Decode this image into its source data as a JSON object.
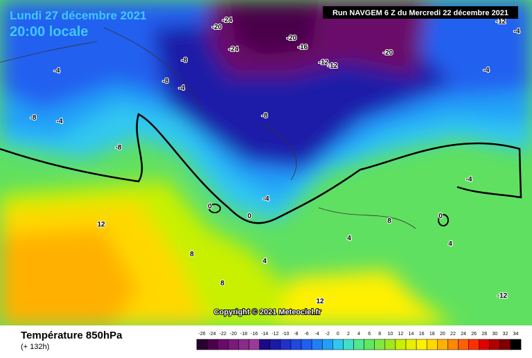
{
  "header": {
    "date": "Lundi 27 décembre 2021",
    "time": "20:00 locale",
    "run": "Run NAVGEM 6 Z du Mercredi 22 décembre 2021"
  },
  "copyright": "Copyright © 2021 Meteociel.fr",
  "map_labels": [
    -24,
    -20,
    -24,
    -20,
    -16,
    -20,
    -12,
    -12,
    -8,
    -4,
    -4,
    -12,
    -8,
    -8,
    -8,
    -4,
    -8,
    -4,
    -4,
    -4,
    -4,
    0,
    0,
    0,
    12,
    8,
    4,
    4,
    8,
    4,
    8,
    12,
    -12
  ],
  "footer": {
    "title": "Température 850hPa",
    "lead": "(+ 132h)"
  },
  "legend": {
    "ticks": [
      -26,
      -24,
      -22,
      -20,
      -18,
      -16,
      -14,
      -12,
      -10,
      -8,
      -6,
      -4,
      -2,
      0,
      2,
      4,
      6,
      8,
      10,
      12,
      14,
      16,
      18,
      20,
      22,
      24,
      26,
      28,
      30,
      32,
      34
    ],
    "colors": [
      "#2a0030",
      "#4a004a",
      "#6a0a6a",
      "#7a1a7a",
      "#8a2a8a",
      "#9a3a9a",
      "#1a0a8a",
      "#1a1aa8",
      "#2030c8",
      "#2048e0",
      "#2060f0",
      "#1e80f8",
      "#20a0f8",
      "#30c8f0",
      "#40e0c8",
      "#50e890",
      "#60e860",
      "#80e840",
      "#a0e820",
      "#c8f000",
      "#e8f000",
      "#fff000",
      "#ffd800",
      "#ffb000",
      "#ff8800",
      "#ff6000",
      "#ff3000",
      "#e00000",
      "#b00000",
      "#800000",
      "#000000"
    ]
  }
}
